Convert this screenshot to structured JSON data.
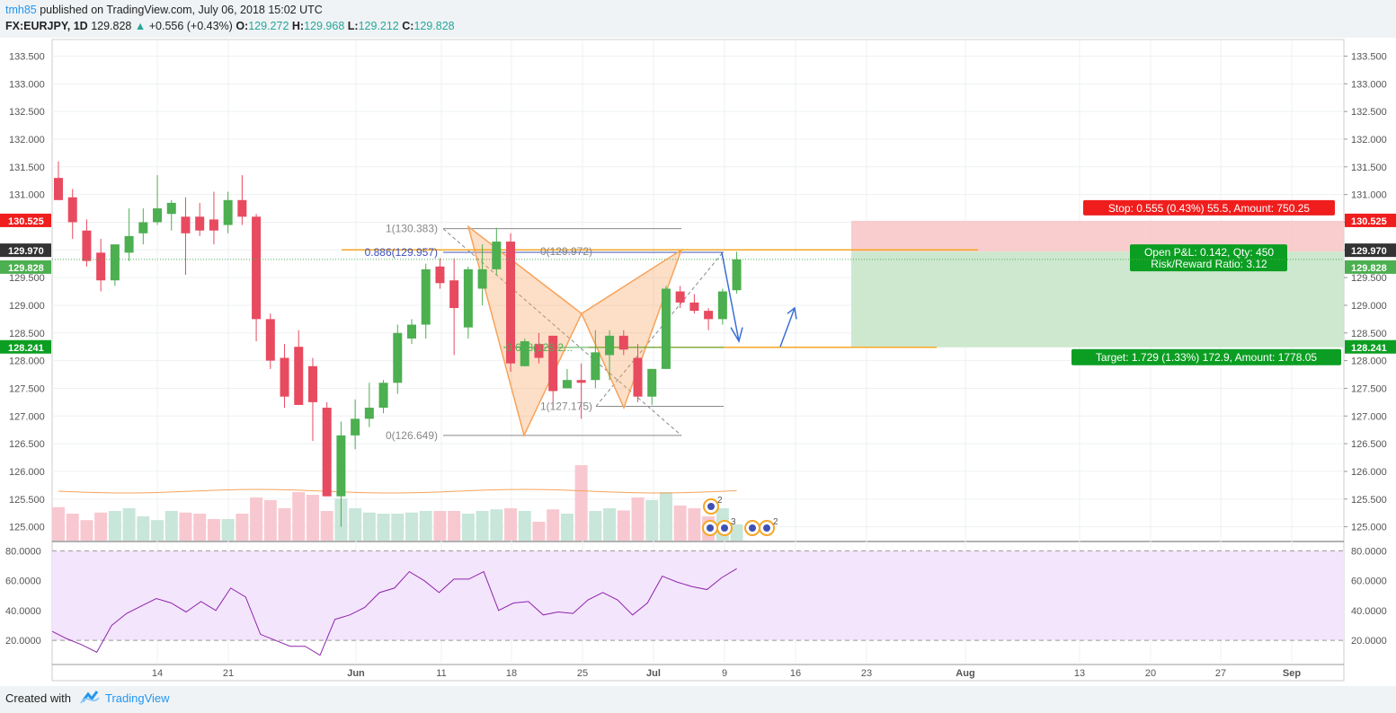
{
  "header": {
    "author": "tmh85",
    "published_text": "published on TradingView.com, July 06, 2018 15:02 UTC",
    "symbol": "FX:EURJPY, 1D",
    "last": "129.828",
    "change": "+0.556 (+0.43%)",
    "o_label": "O:",
    "o_val": "129.272",
    "h_label": "H:",
    "h_val": "129.968",
    "l_label": "L:",
    "l_val": "129.212",
    "c_label": "C:",
    "c_val": "129.828"
  },
  "footer": {
    "created_with": "Created with",
    "brand": "TradingView"
  },
  "colors": {
    "up": "#26a69a",
    "up_candle": "#4caf50",
    "down_candle": "#e84a5f",
    "pattern": "#f7a35c",
    "rsi": "#8e24aa",
    "rsi_band": "#f3e5fc",
    "stop_zone": "#f8c8c8",
    "target_zone": "#c8e6c9"
  },
  "chart_data": {
    "type": "candlestick",
    "price_axis": {
      "range": [
        124.75,
        133.8
      ],
      "ticks": [
        "133.500",
        "133.000",
        "132.500",
        "132.000",
        "131.500",
        "131.000",
        "130.500",
        "130.000",
        "129.500",
        "129.000",
        "128.500",
        "128.000",
        "127.500",
        "127.000",
        "126.500",
        "126.000",
        "125.500",
        "125.000"
      ]
    },
    "time_axis": {
      "ticks": [
        "14",
        "21",
        "Jun",
        "11",
        "18",
        "25",
        "Jul",
        "9",
        "16",
        "23",
        "Aug",
        "13",
        "20",
        "27",
        "Sep"
      ]
    },
    "candles": [
      {
        "o": 131.3,
        "h": 131.6,
        "l": 130.9,
        "c": 130.9
      },
      {
        "o": 130.95,
        "h": 131.1,
        "l": 130.2,
        "c": 130.5
      },
      {
        "o": 130.35,
        "h": 130.55,
        "l": 129.7,
        "c": 129.8
      },
      {
        "o": 129.95,
        "h": 130.2,
        "l": 129.25,
        "c": 129.45
      },
      {
        "o": 129.45,
        "h": 130.1,
        "l": 129.35,
        "c": 130.1
      },
      {
        "o": 129.95,
        "h": 130.75,
        "l": 129.8,
        "c": 130.25
      },
      {
        "o": 130.3,
        "h": 130.75,
        "l": 130.1,
        "c": 130.5
      },
      {
        "o": 130.5,
        "h": 131.35,
        "l": 130.45,
        "c": 130.75
      },
      {
        "o": 130.65,
        "h": 130.9,
        "l": 130.35,
        "c": 130.85
      },
      {
        "o": 130.6,
        "h": 130.95,
        "l": 129.55,
        "c": 130.3
      },
      {
        "o": 130.6,
        "h": 130.85,
        "l": 130.25,
        "c": 130.35
      },
      {
        "o": 130.55,
        "h": 131.05,
        "l": 130.1,
        "c": 130.35
      },
      {
        "o": 130.45,
        "h": 131.05,
        "l": 130.3,
        "c": 130.9
      },
      {
        "o": 130.9,
        "h": 131.35,
        "l": 130.45,
        "c": 130.6
      },
      {
        "o": 130.6,
        "h": 130.65,
        "l": 128.35,
        "c": 128.75
      },
      {
        "o": 128.75,
        "h": 128.85,
        "l": 127.85,
        "c": 128.0
      },
      {
        "o": 128.05,
        "h": 128.3,
        "l": 127.15,
        "c": 127.35
      },
      {
        "o": 128.25,
        "h": 128.55,
        "l": 127.25,
        "c": 127.2
      },
      {
        "o": 127.9,
        "h": 128.05,
        "l": 126.55,
        "c": 127.25
      },
      {
        "o": 127.15,
        "h": 127.25,
        "l": 125.55,
        "c": 125.55
      },
      {
        "o": 125.55,
        "h": 126.9,
        "l": 125.0,
        "c": 126.65
      },
      {
        "o": 126.65,
        "h": 127.3,
        "l": 126.4,
        "c": 126.95
      },
      {
        "o": 126.95,
        "h": 127.6,
        "l": 126.8,
        "c": 127.15
      },
      {
        "o": 127.15,
        "h": 127.65,
        "l": 127.05,
        "c": 127.6
      },
      {
        "o": 127.6,
        "h": 128.65,
        "l": 127.4,
        "c": 128.5
      },
      {
        "o": 128.4,
        "h": 128.75,
        "l": 128.3,
        "c": 128.65
      },
      {
        "o": 128.65,
        "h": 129.75,
        "l": 128.4,
        "c": 129.65
      },
      {
        "o": 129.7,
        "h": 129.85,
        "l": 129.3,
        "c": 129.4
      },
      {
        "o": 129.45,
        "h": 129.85,
        "l": 128.1,
        "c": 128.95
      },
      {
        "o": 128.6,
        "h": 129.7,
        "l": 128.4,
        "c": 129.65
      },
      {
        "o": 129.3,
        "h": 130.1,
        "l": 129.0,
        "c": 129.65
      },
      {
        "o": 129.65,
        "h": 130.4,
        "l": 129.55,
        "c": 130.15
      },
      {
        "o": 130.15,
        "h": 130.3,
        "l": 127.8,
        "c": 127.95
      },
      {
        "o": 127.9,
        "h": 128.4,
        "l": 127.9,
        "c": 128.35
      },
      {
        "o": 128.3,
        "h": 128.5,
        "l": 127.95,
        "c": 128.05
      },
      {
        "o": 128.45,
        "h": 128.45,
        "l": 127.15,
        "c": 127.45
      },
      {
        "o": 127.5,
        "h": 127.85,
        "l": 127.5,
        "c": 127.65
      },
      {
        "o": 127.65,
        "h": 127.95,
        "l": 126.95,
        "c": 127.6
      },
      {
        "o": 127.65,
        "h": 128.55,
        "l": 127.5,
        "c": 128.15
      },
      {
        "o": 128.1,
        "h": 128.55,
        "l": 127.65,
        "c": 128.45
      },
      {
        "o": 128.45,
        "h": 128.55,
        "l": 128.1,
        "c": 128.2
      },
      {
        "o": 128.05,
        "h": 128.3,
        "l": 127.25,
        "c": 127.35
      },
      {
        "o": 127.35,
        "h": 127.85,
        "l": 127.2,
        "c": 127.85
      },
      {
        "o": 127.85,
        "h": 129.35,
        "l": 127.85,
        "c": 129.3
      },
      {
        "o": 129.25,
        "h": 129.35,
        "l": 128.95,
        "c": 129.05
      },
      {
        "o": 129.05,
        "h": 129.2,
        "l": 128.85,
        "c": 128.9
      },
      {
        "o": 128.9,
        "h": 128.95,
        "l": 128.55,
        "c": 128.75
      },
      {
        "o": 128.75,
        "h": 129.3,
        "l": 128.65,
        "c": 129.25
      },
      {
        "o": 129.272,
        "h": 129.968,
        "l": 129.212,
        "c": 129.828
      }
    ],
    "volume_ma_label": "",
    "levels": {
      "stop": "130.525",
      "entry": "129.970",
      "current": "129.828",
      "target": "128.241"
    },
    "fib_labels": [
      "1(130.383)",
      "0.886(129.957)",
      "0(129.972)",
      "0.618(128.2...",
      "1(127.175)",
      "0(126.649)"
    ],
    "position_labels": {
      "stop": "Stop: 0.555 (0.43%) 55.5, Amount: 750.25",
      "pnl": "Open P&L: 0.142, Qty: 450",
      "rr": "Risk/Reward Ratio: 3.12",
      "target": "Target: 1.729 (1.33%) 172.9, Amount: 1778.05"
    },
    "rsi": {
      "axis_ticks": [
        "80.0000",
        "60.0000",
        "40.0000",
        "20.0000"
      ],
      "range": [
        5,
        85
      ],
      "bands": [
        80,
        20
      ],
      "values": [
        26,
        21,
        17,
        12,
        30,
        38,
        43,
        48,
        45,
        39,
        46,
        40,
        55,
        49,
        24,
        20,
        16,
        16,
        10,
        34,
        37,
        42,
        52,
        55,
        66,
        60,
        52,
        61,
        61,
        66,
        40,
        45,
        46,
        37,
        39,
        38,
        47,
        52,
        47,
        37,
        45,
        63,
        59,
        56,
        54,
        62,
        68
      ]
    },
    "events": {
      "badge_a": "2",
      "badge_b": "3",
      "badge_c": "2"
    }
  }
}
